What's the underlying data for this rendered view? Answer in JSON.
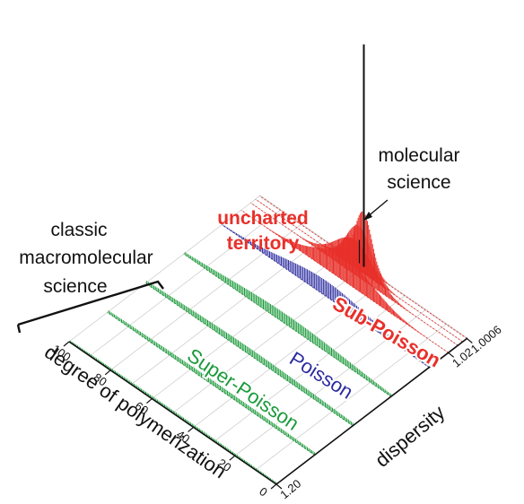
{
  "chart_data": {
    "type": "3d-bar-distribution",
    "title": "",
    "xlabel": "degree of polymerization",
    "ylabel": "dispersity",
    "x_axis": {
      "label": "degree of polymerization",
      "ticks": [
        "100",
        "80",
        "60",
        "40",
        "20",
        "0"
      ],
      "range": [
        0,
        100
      ]
    },
    "y_axis": {
      "label": "dispersity",
      "ticks": [
        "1.0006",
        "1.02",
        "1.20"
      ],
      "range": [
        1.0,
        1.2
      ]
    },
    "regions": [
      {
        "name": "Super-Poisson",
        "label": "Super-Poisson",
        "color": "#1a9a3a",
        "dispersity": [
          1.2,
          1.16,
          1.12,
          1.08
        ]
      },
      {
        "name": "Poisson",
        "label": "Poisson",
        "color": "#2b2ba0",
        "dispersity": [
          1.04
        ]
      },
      {
        "name": "Sub-Poisson",
        "label": "Sub-Poisson",
        "color": "#e8302a",
        "dispersity": [
          1.02,
          1.01,
          1.005,
          1.0006
        ]
      }
    ],
    "series": [
      {
        "region": "Super-Poisson",
        "dispersity": 1.2,
        "peak_dp": 50,
        "peak": 0.05,
        "width": 60
      },
      {
        "region": "Super-Poisson",
        "dispersity": 1.16,
        "peak_dp": 50,
        "peak": 0.08,
        "width": 50
      },
      {
        "region": "Super-Poisson",
        "dispersity": 1.12,
        "peak_dp": 50,
        "peak": 0.12,
        "width": 40
      },
      {
        "region": "Super-Poisson",
        "dispersity": 1.08,
        "peak_dp": 50,
        "peak": 0.18,
        "width": 30
      },
      {
        "region": "Poisson",
        "dispersity": 1.04,
        "peak_dp": 50,
        "peak": 0.28,
        "width": 20
      },
      {
        "region": "Sub-Poisson",
        "dispersity": 1.02,
        "peak_dp": 50,
        "peak": 0.45,
        "width": 13
      },
      {
        "region": "Sub-Poisson",
        "dispersity": 1.01,
        "peak_dp": 50,
        "peak": 0.62,
        "width": 9
      },
      {
        "region": "Sub-Poisson",
        "dispersity": 1.005,
        "peak_dp": 50,
        "peak": 0.8,
        "width": 6
      },
      {
        "region": "Sub-Poisson",
        "dispersity": 1.0006,
        "peak_dp": 50,
        "peak": 1.0,
        "width": 4
      }
    ],
    "delta_peak": {
      "region": "molecular science",
      "dispersity": 1.0,
      "dp": 50,
      "peak": 4.0
    },
    "annotations": {
      "molecular_science": [
        "molecular",
        "science"
      ],
      "uncharted_territory": [
        "uncharted",
        "territory"
      ],
      "classic_macromolecular": [
        "classic",
        "macromolecular",
        "science"
      ]
    },
    "grid": true
  },
  "colors": {
    "green": "#1a9a3a",
    "blue": "#2b2ba0",
    "red": "#e8302a",
    "axis": "#111111",
    "grid": "#c9c9c9"
  }
}
